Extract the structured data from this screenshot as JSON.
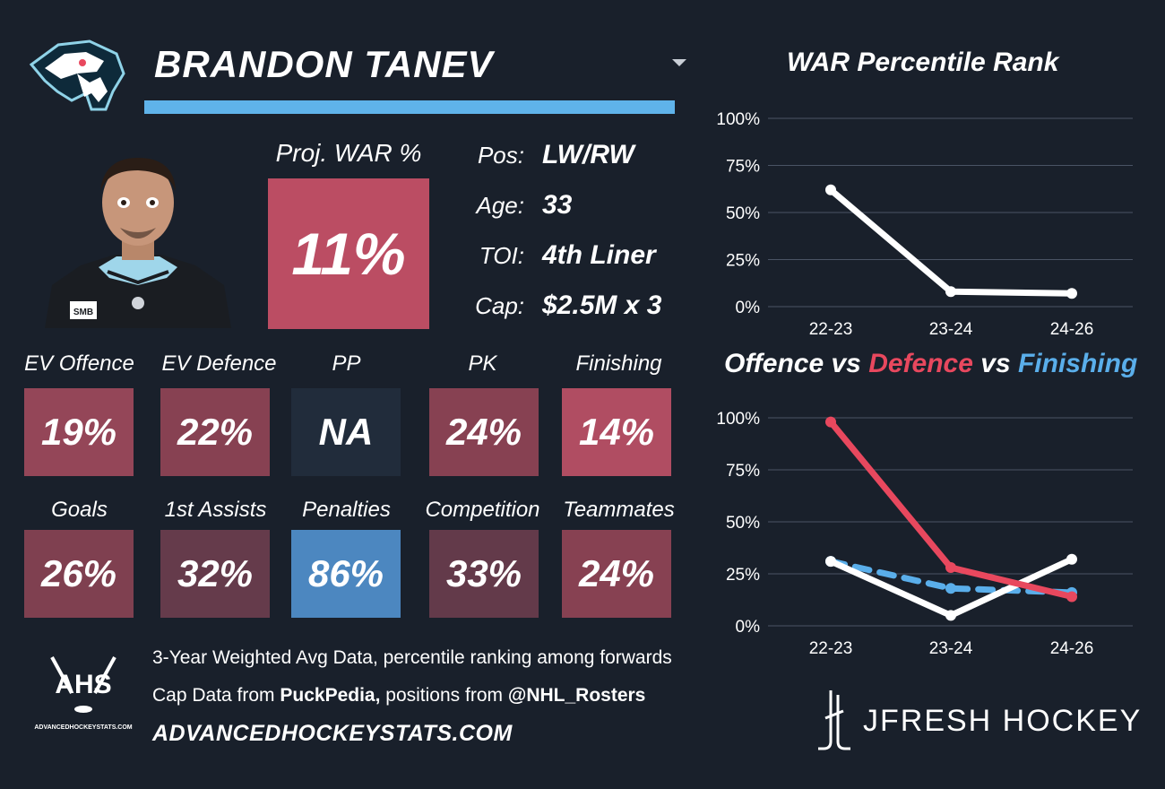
{
  "player": {
    "name": "BRANDON TANEV",
    "proj_war_label": "Proj. WAR %",
    "proj_war_value": "11%",
    "info": [
      {
        "key": "Pos:",
        "value": "LW/RW"
      },
      {
        "key": "Age:",
        "value": "33"
      },
      {
        "key": "TOI:",
        "value": "4th Liner"
      },
      {
        "key": "Cap:",
        "value": "$2.5M x 3"
      }
    ],
    "headshot_number": "SMB"
  },
  "stats": [
    {
      "label": "EV Offence",
      "value": "19%",
      "color": "#944658"
    },
    {
      "label": "EV Defence",
      "value": "22%",
      "color": "#874152"
    },
    {
      "label": "PP",
      "value": "NA",
      "color": "#212c3b"
    },
    {
      "label": "PK",
      "value": "24%",
      "color": "#874152"
    },
    {
      "label": "Finishing",
      "value": "14%",
      "color": "#b04d62"
    },
    {
      "label": "Goals",
      "value": "26%",
      "color": "#7f4050"
    },
    {
      "label": "1st Assists",
      "value": "32%",
      "color": "#653b4b"
    },
    {
      "label": "Penalties",
      "value": "86%",
      "color": "#4c87c0"
    },
    {
      "label": "Competition",
      "value": "33%",
      "color": "#633a4a"
    },
    {
      "label": "Teammates",
      "value": "24%",
      "color": "#874152"
    }
  ],
  "footer": {
    "line1": "3-Year Weighted Avg Data, percentile ranking among forwards",
    "line2_prefix": "Cap Data from ",
    "line2_source": "PuckPedia,",
    "line2_mid": " positions from ",
    "line2_handle": "@NHL_Rosters",
    "url": "ADVANCEDHOCKEYSTATS.COM",
    "ahs_logo_text": "AHS",
    "ahs_logo_sub": "ADVANCEDHOCKEYSTATS.COM",
    "brand": "JFRESH HOCKEY"
  },
  "colors": {
    "background": "#19202b",
    "accent_blue": "#5fb3ea",
    "defence_red": "#e8485e",
    "finishing_blue": "#5aaeea",
    "offence_white": "#ffffff",
    "grid": "#4a5464"
  },
  "chart_data": [
    {
      "type": "line",
      "title": "WAR Percentile Rank",
      "categories": [
        "22-23",
        "23-24",
        "24-26"
      ],
      "ylim": [
        0,
        100
      ],
      "yticks": [
        "0%",
        "25%",
        "50%",
        "75%",
        "100%"
      ],
      "grid": true,
      "series": [
        {
          "values": [
            62,
            8,
            7
          ],
          "color": "#ffffff",
          "dashed": false
        }
      ]
    },
    {
      "type": "line",
      "title_parts": [
        {
          "text": "Offence",
          "color": "#ffffff"
        },
        {
          "text": " vs ",
          "color": "#ffffff"
        },
        {
          "text": "Defence",
          "color": "#e8485e"
        },
        {
          "text": " vs ",
          "color": "#ffffff"
        },
        {
          "text": "Finishing",
          "color": "#5aaeea"
        }
      ],
      "categories": [
        "22-23",
        "23-24",
        "24-26"
      ],
      "ylim": [
        0,
        100
      ],
      "yticks": [
        "0%",
        "25%",
        "50%",
        "75%",
        "100%"
      ],
      "grid": true,
      "series": [
        {
          "name": "Finishing",
          "values": [
            31,
            18,
            16
          ],
          "color": "#5aaeea",
          "dashed": true
        },
        {
          "name": "Offence",
          "values": [
            31,
            5,
            32
          ],
          "color": "#ffffff",
          "dashed": false
        },
        {
          "name": "Defence",
          "values": [
            98,
            28,
            14
          ],
          "color": "#e8485e",
          "dashed": false
        }
      ]
    }
  ]
}
